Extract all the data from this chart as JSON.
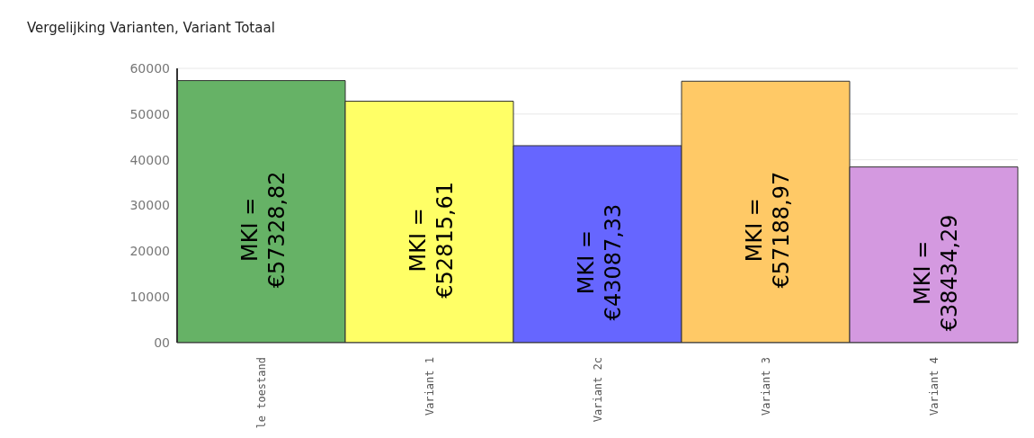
{
  "chart_data": {
    "type": "bar",
    "title": "Vergelijking Varianten, Variant Totaal",
    "categories": [
      "le toestand",
      "Variant 1",
      "Variant 2c",
      "Variant 3",
      "Variant 4"
    ],
    "values": [
      57328.82,
      52815.61,
      43087.33,
      57188.97,
      38434.29
    ],
    "colors": [
      "#66b266",
      "#ffff66",
      "#6666ff",
      "#ffc966",
      "#d499e0"
    ],
    "value_labels": [
      "MKI = €57328,82",
      "MKI = €52815,61",
      "MKI = €43087,33",
      "MKI = €57188,97",
      "MKI = €38434,29"
    ],
    "ylim": [
      0,
      60000
    ],
    "yticks": [
      {
        "value": 0,
        "label": "00"
      },
      10000,
      20000,
      30000,
      40000,
      50000,
      60000
    ],
    "grid": "y"
  }
}
